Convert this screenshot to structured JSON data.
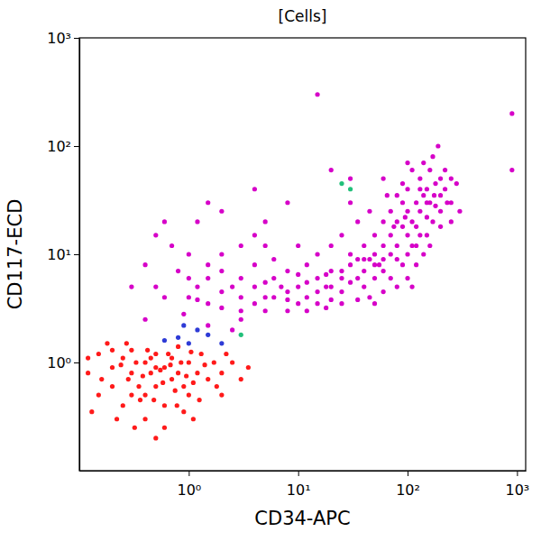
{
  "chart_data": {
    "type": "scatter",
    "title": "[Cells]",
    "x_label": "CD34-APC",
    "y_label": "CD117-ECD",
    "log": true,
    "grid": false,
    "xlim": [
      0.1,
      1200
    ],
    "ylim": [
      0.1,
      1000
    ],
    "xticks": [
      {
        "value": 1,
        "label": "10⁰"
      },
      {
        "value": 10,
        "label": "10¹"
      },
      {
        "value": 100,
        "label": "10²"
      },
      {
        "value": 1000,
        "label": "10³"
      }
    ],
    "yticks": [
      {
        "value": 1,
        "label": "10⁰"
      },
      {
        "value": 10,
        "label": "10¹"
      },
      {
        "value": 100,
        "label": "10²"
      },
      {
        "value": 1000,
        "label": "10³"
      }
    ],
    "series": [
      {
        "color": "#d600c8",
        "marker": "circle",
        "x": [
          1,
          1.2,
          1.5,
          2,
          2,
          2.5,
          3,
          3,
          4,
          4,
          5,
          5,
          6,
          7,
          8,
          8,
          10,
          10,
          12,
          12,
          15,
          15,
          18,
          20,
          20,
          25,
          25,
          30,
          30,
          35,
          40,
          40,
          45,
          50,
          50,
          55,
          60,
          60,
          70,
          70,
          80,
          80,
          90,
          100,
          100,
          110,
          120,
          120,
          130,
          140,
          150,
          150,
          160,
          180,
          180,
          200,
          200,
          220,
          250,
          250,
          100,
          90,
          70,
          60,
          50,
          40,
          30,
          110,
          130,
          160,
          170,
          140,
          90,
          80,
          120,
          100,
          150,
          200,
          60,
          45,
          35,
          25,
          20,
          15,
          10,
          8,
          6,
          4,
          3,
          2,
          1.5,
          1.2,
          1,
          1.5,
          2,
          3,
          4,
          1,
          0.8,
          0.6,
          0.5,
          0.7,
          0.4,
          0.3,
          0.5,
          1.2,
          2,
          0.6,
          5,
          8,
          10,
          15,
          20,
          12,
          6,
          5,
          25,
          35,
          45,
          65,
          30,
          20,
          4,
          1.5,
          250,
          300,
          280,
          220,
          190,
          100,
          60,
          3,
          5,
          8,
          12,
          18,
          50,
          80,
          120,
          160,
          110,
          30,
          0.9,
          1.5,
          2.5,
          0.4,
          15,
          900,
          900,
          40,
          70,
          90,
          130,
          60,
          80,
          110,
          150,
          170,
          200,
          230,
          50,
          35,
          25,
          18,
          100,
          140,
          75,
          95,
          130,
          175
        ],
        "values": [
          4,
          5,
          6,
          4.5,
          7,
          5,
          6,
          4,
          5,
          8,
          5.5,
          4,
          6,
          5,
          7,
          4.5,
          5,
          6.5,
          5.5,
          4,
          6,
          4.5,
          5,
          7,
          5,
          6,
          4.5,
          5.5,
          8,
          6,
          7,
          5,
          9,
          6,
          10,
          8,
          12,
          7,
          10,
          15,
          12,
          20,
          18,
          15,
          25,
          20,
          30,
          18,
          25,
          35,
          22,
          40,
          30,
          28,
          45,
          35,
          25,
          40,
          30,
          50,
          40,
          30,
          25,
          20,
          15,
          12,
          10,
          60,
          50,
          60,
          80,
          70,
          45,
          35,
          12,
          10,
          15,
          18,
          4.5,
          4,
          3.8,
          3.5,
          3.8,
          3.5,
          3.5,
          3.8,
          4,
          3.5,
          3,
          3.2,
          3.5,
          3.8,
          6,
          8,
          10,
          12,
          15,
          10,
          7,
          4,
          5,
          12,
          8,
          5,
          15,
          20,
          25,
          20,
          20,
          30,
          12,
          10,
          12,
          8,
          9,
          12,
          15,
          20,
          25,
          35,
          50,
          60,
          40,
          30,
          20,
          25,
          45,
          60,
          100,
          70,
          50,
          2.5,
          3,
          3,
          3,
          3.2,
          3.5,
          5,
          8,
          12,
          5,
          30,
          2.8,
          2.2,
          2,
          2.5,
          300,
          60,
          200,
          9,
          6,
          8,
          15,
          9,
          9,
          12,
          30,
          20,
          50,
          30,
          8,
          9,
          7,
          6.5,
          6,
          10,
          18,
          22,
          40,
          35
        ]
      },
      {
        "color": "#2e3bd6",
        "marker": "circle",
        "x": [
          1,
          0.8,
          1.5,
          0.6,
          2,
          1.2,
          0.9
        ],
        "values": [
          1.5,
          1.7,
          1.8,
          1.6,
          1.5,
          2,
          2.2
        ]
      },
      {
        "color": "#22c07a",
        "marker": "circle",
        "x": [
          30,
          25,
          3
        ],
        "values": [
          40,
          45,
          1.8
        ]
      },
      {
        "color": "#ff1a1a",
        "marker": "circle",
        "x": [
          0.12,
          0.15,
          0.15,
          0.2,
          0.2,
          0.25,
          0.25,
          0.3,
          0.3,
          0.35,
          0.4,
          0.4,
          0.45,
          0.5,
          0.5,
          0.6,
          0.6,
          0.7,
          0.7,
          0.8,
          0.8,
          0.9,
          1,
          1,
          1.2,
          1.3,
          1.5,
          1.7,
          2,
          2,
          2.5,
          3,
          3.5,
          0.13,
          0.18,
          0.22,
          0.28,
          0.33,
          0.38,
          0.42,
          0.48,
          0.55,
          0.65,
          0.75,
          0.85,
          0.95,
          1.1,
          1.4,
          1.8,
          0.3,
          0.5,
          0.2,
          0.4,
          0.6,
          0.9,
          0.12,
          0.16,
          0.24,
          0.36,
          0.45,
          0.58,
          0.68,
          0.78,
          1.05,
          1.25,
          0.27,
          0.5,
          1.1,
          2.2,
          0.32
        ],
        "values": [
          0.8,
          1.2,
          0.5,
          0.9,
          0.6,
          1.1,
          0.4,
          0.8,
          1.3,
          0.6,
          1,
          0.5,
          0.8,
          1.2,
          0.6,
          0.9,
          0.4,
          1.1,
          0.7,
          0.8,
          1.4,
          0.6,
          1,
          0.5,
          0.8,
          1.2,
          0.7,
          1,
          0.8,
          0.5,
          1,
          0.7,
          0.9,
          0.35,
          1.5,
          0.3,
          0.7,
          1,
          0.75,
          1.3,
          0.45,
          0.85,
          1.2,
          0.55,
          1,
          0.75,
          0.65,
          0.95,
          0.6,
          0.5,
          0.9,
          1.3,
          0.3,
          0.25,
          0.35,
          1.1,
          0.7,
          0.95,
          0.45,
          1.1,
          0.65,
          0.95,
          0.4,
          1.25,
          0.45,
          1.5,
          0.2,
          0.3,
          1.2,
          0.25
        ]
      }
    ]
  }
}
